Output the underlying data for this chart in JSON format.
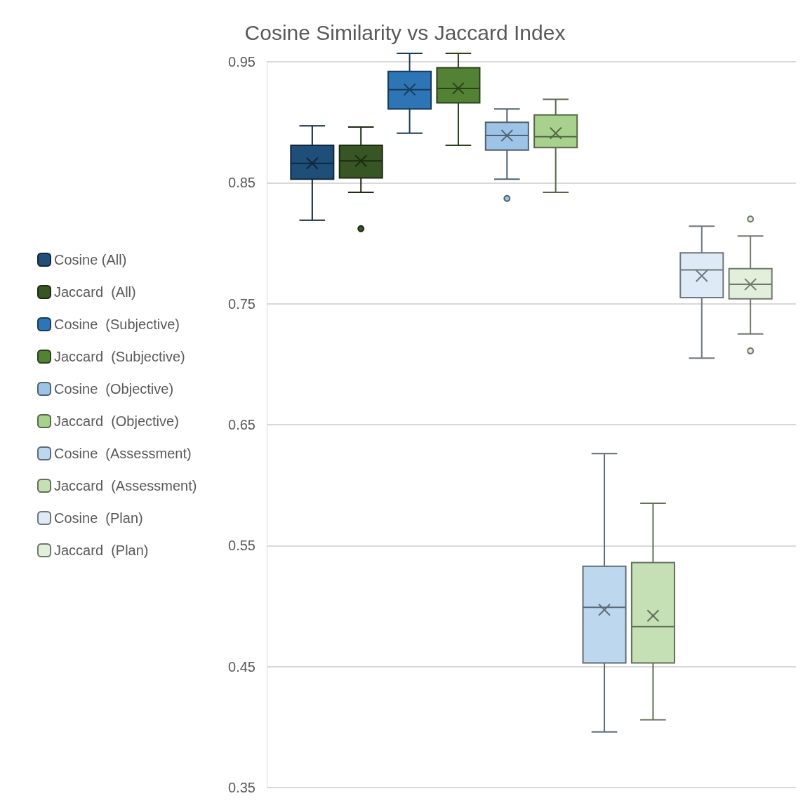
{
  "chart_data": {
    "type": "box",
    "title": "Cosine Similarity vs Jaccard Index",
    "categories": [
      null
    ],
    "ylim": [
      0.35,
      0.95
    ],
    "yticks": [
      0.35,
      0.45,
      0.55,
      0.65,
      0.75,
      0.85,
      0.95
    ],
    "grid": "y",
    "legend": "left",
    "series": [
      {
        "name": "Cosine (All)",
        "color": "#1f4e79",
        "boxes": [
          {
            "low": 0.819,
            "q1": 0.853,
            "median": 0.866,
            "q3": 0.881,
            "high": 0.897,
            "mean": 0.866
          }
        ]
      },
      {
        "name": "Jaccard  (All)",
        "color": "#375623",
        "boxes": [
          {
            "low": 0.842,
            "q1": 0.854,
            "median": 0.868,
            "q3": 0.881,
            "high": 0.896,
            "mean": 0.868,
            "outliers": [
              0.812
            ]
          }
        ]
      },
      {
        "name": "Cosine  (Subjective)",
        "color": "#2e75b6",
        "boxes": [
          {
            "low": 0.891,
            "q1": 0.911,
            "median": 0.927,
            "q3": 0.942,
            "high": 0.957,
            "mean": 0.927
          }
        ]
      },
      {
        "name": "Jaccard  (Subjective)",
        "color": "#548235",
        "boxes": [
          {
            "low": 0.881,
            "q1": 0.916,
            "median": 0.928,
            "q3": 0.945,
            "high": 0.957,
            "mean": 0.928
          }
        ]
      },
      {
        "name": "Cosine  (Objective)",
        "color": "#9dc3e6",
        "boxes": [
          {
            "low": 0.853,
            "q1": 0.877,
            "median": 0.889,
            "q3": 0.9,
            "high": 0.911,
            "mean": 0.889,
            "outliers": [
              0.837
            ]
          }
        ]
      },
      {
        "name": "Jaccard  (Objective)",
        "color": "#a9d18e",
        "boxes": [
          {
            "low": 0.842,
            "q1": 0.879,
            "median": 0.888,
            "q3": 0.906,
            "high": 0.919,
            "mean": 0.891
          }
        ]
      },
      {
        "name": "Cosine  (Assessment)",
        "color": "#bdd7ee",
        "boxes": [
          {
            "low": 0.396,
            "q1": 0.453,
            "median": 0.499,
            "q3": 0.533,
            "high": 0.626,
            "mean": 0.497
          }
        ]
      },
      {
        "name": "Jaccard  (Assessment)",
        "color": "#c5e0b4",
        "boxes": [
          {
            "low": 0.406,
            "q1": 0.453,
            "median": 0.483,
            "q3": 0.536,
            "high": 0.585,
            "mean": 0.492
          }
        ]
      },
      {
        "name": "Cosine  (Plan)",
        "color": "#deebf7",
        "boxes": [
          {
            "low": 0.705,
            "q1": 0.755,
            "median": 0.778,
            "q3": 0.792,
            "high": 0.814,
            "mean": 0.773
          }
        ]
      },
      {
        "name": "Jaccard  (Plan)",
        "color": "#e2efda",
        "boxes": [
          {
            "low": 0.725,
            "q1": 0.754,
            "median": 0.766,
            "q3": 0.779,
            "high": 0.806,
            "mean": 0.766,
            "outliers": [
              0.82,
              0.711
            ]
          }
        ]
      }
    ]
  }
}
